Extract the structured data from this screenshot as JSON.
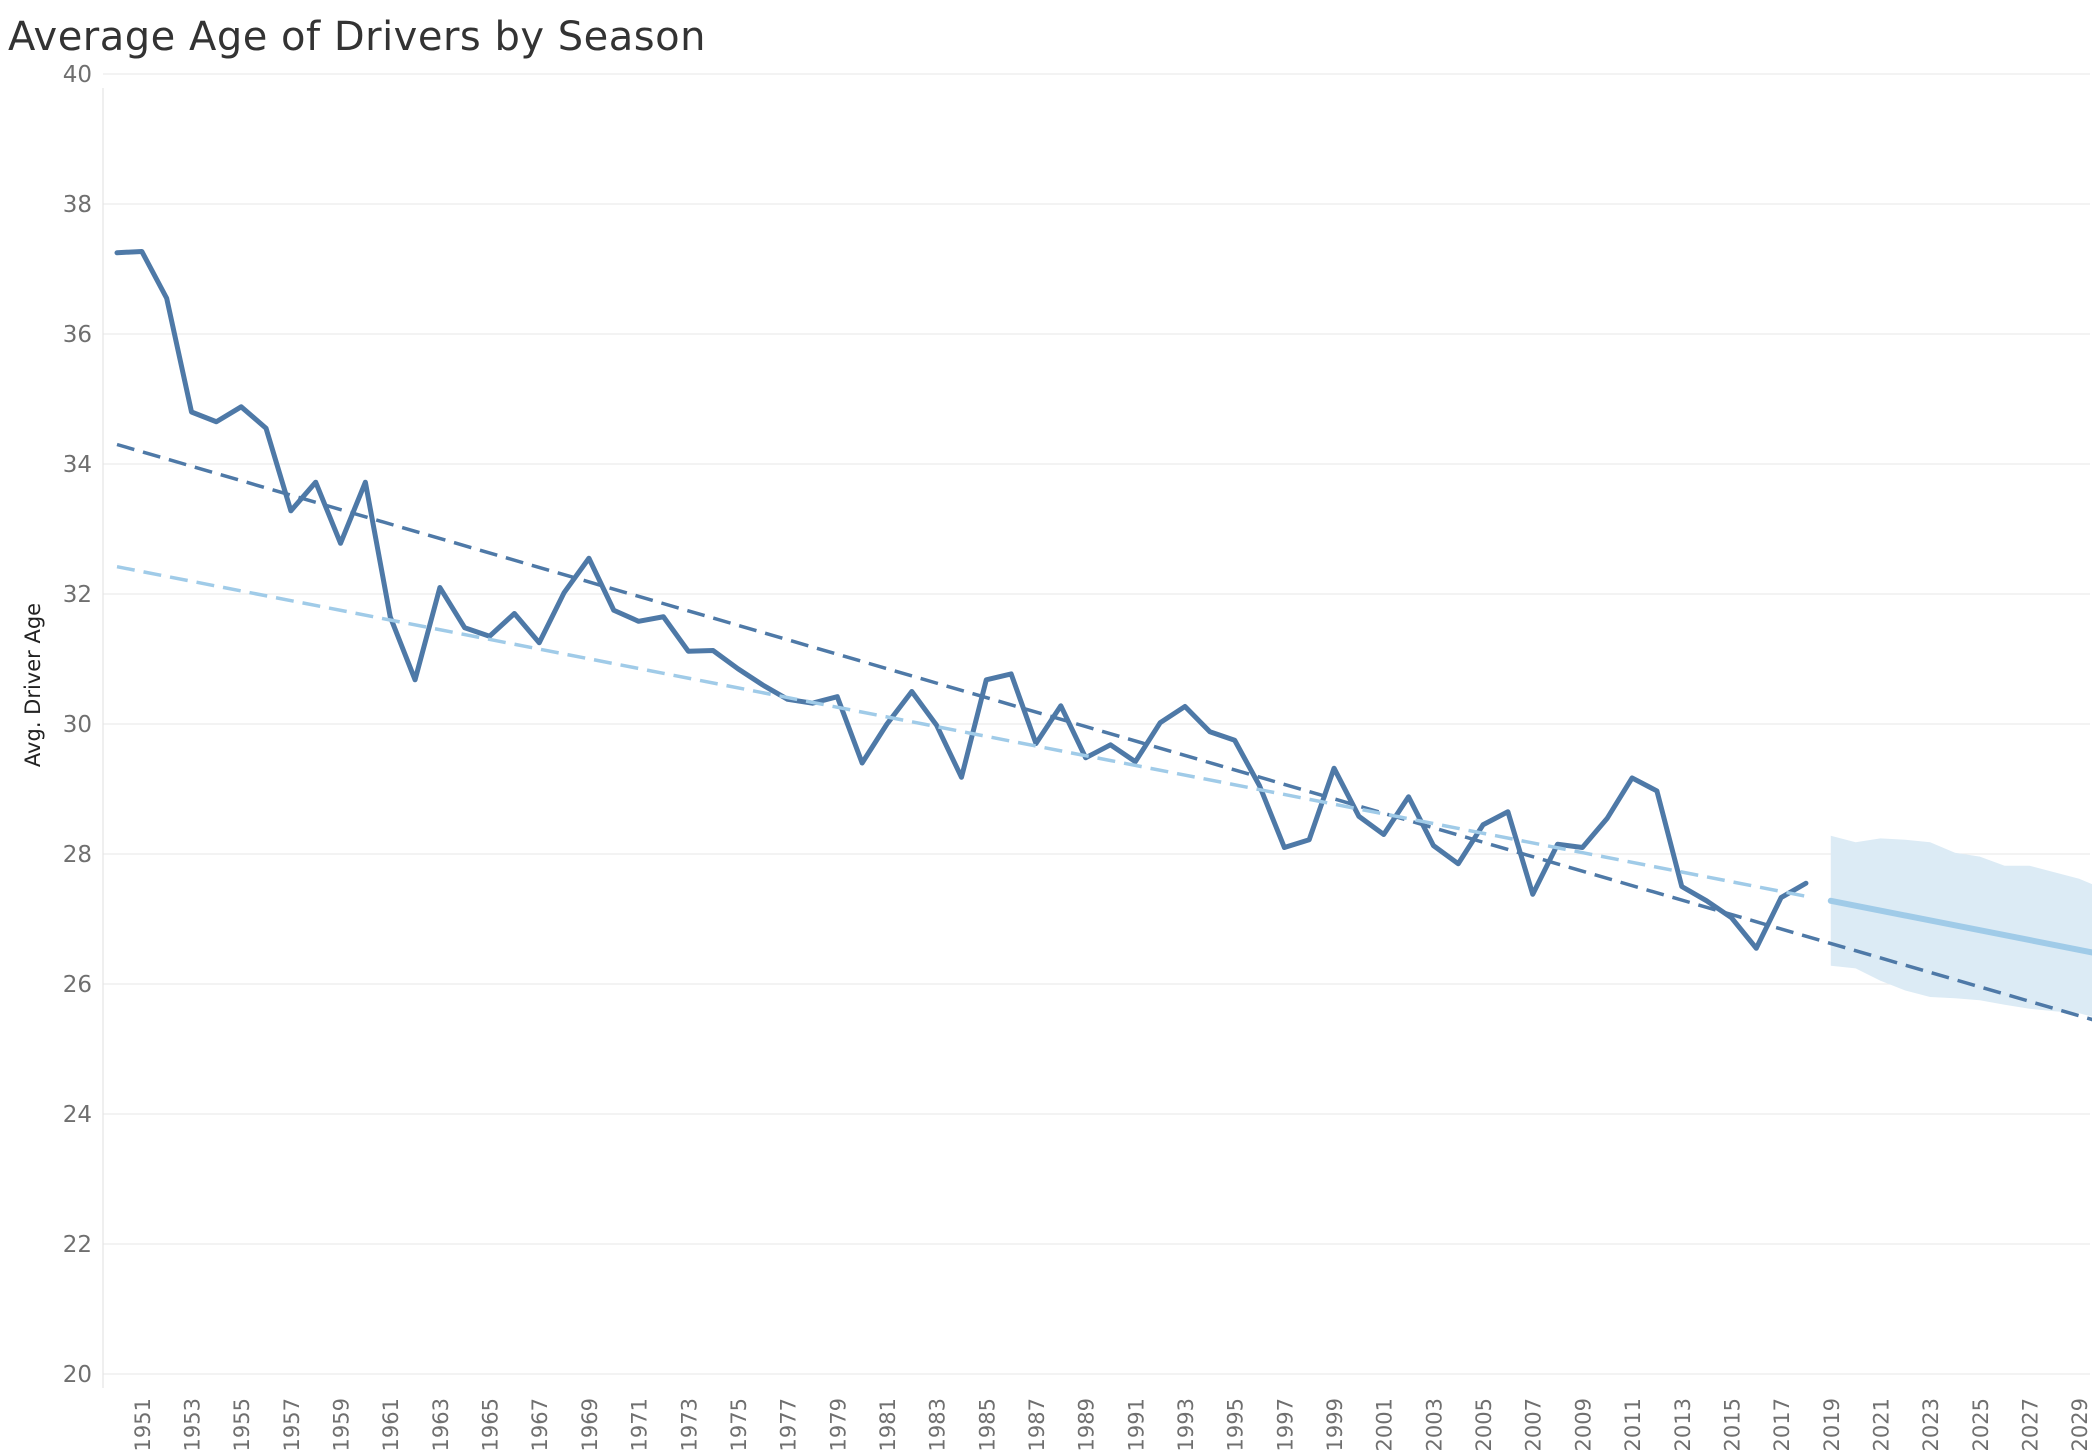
{
  "chart_data": {
    "type": "line",
    "title": "Average Age of Drivers by Season",
    "xlabel": "",
    "ylabel": "Avg. Driver Age",
    "ylim": [
      20,
      40
    ],
    "xlim": [
      1950,
      2030
    ],
    "grid": true,
    "y_ticks": [
      20,
      22,
      24,
      26,
      28,
      30,
      32,
      34,
      36,
      38,
      40
    ],
    "x_ticks": [
      "1951",
      "1953",
      "1955",
      "1957",
      "1959",
      "1961",
      "1963",
      "1965",
      "1967",
      "1969",
      "1971",
      "1973",
      "1975",
      "1977",
      "1979",
      "1981",
      "1983",
      "1985",
      "1987",
      "1989",
      "1991",
      "1993",
      "1995",
      "1997",
      "1999",
      "2001",
      "2003",
      "2005",
      "2007",
      "2009",
      "2011",
      "2013",
      "2015",
      "2017",
      "2019",
      "2021",
      "2023",
      "2025",
      "2027",
      "2029"
    ],
    "series": [
      {
        "kind": "actual",
        "color": "#4e79a7",
        "x": [
          1950,
          1951,
          1952,
          1953,
          1954,
          1955,
          1956,
          1957,
          1958,
          1959,
          1960,
          1961,
          1962,
          1963,
          1964,
          1965,
          1966,
          1967,
          1968,
          1969,
          1970,
          1971,
          1972,
          1973,
          1974,
          1975,
          1976,
          1977,
          1978,
          1979,
          1980,
          1981,
          1982,
          1983,
          1984,
          1985,
          1986,
          1987,
          1988,
          1989,
          1990,
          1991,
          1992,
          1993,
          1994,
          1995,
          1996,
          1997,
          1998,
          1999,
          2000,
          2001,
          2002,
          2003,
          2004,
          2005,
          2006,
          2007,
          2008,
          2009,
          2010,
          2011,
          2012,
          2013,
          2014,
          2015,
          2016,
          2017,
          2018
        ],
        "values": [
          37.25,
          37.27,
          36.55,
          34.8,
          34.65,
          34.88,
          34.55,
          33.28,
          33.72,
          32.78,
          33.72,
          31.65,
          30.68,
          32.1,
          31.48,
          31.35,
          31.7,
          31.25,
          32.02,
          32.55,
          31.75,
          31.58,
          31.65,
          31.12,
          31.13,
          30.85,
          30.6,
          30.38,
          30.32,
          30.42,
          29.4,
          30.0,
          30.5,
          29.98,
          29.18,
          30.68,
          30.77,
          29.7,
          30.28,
          29.48,
          29.68,
          29.42,
          30.02,
          30.27,
          29.88,
          29.75,
          29.05,
          28.1,
          28.22,
          29.32,
          28.58,
          28.3,
          28.88,
          28.13,
          27.85,
          28.45,
          28.65,
          27.38,
          28.15,
          28.1,
          28.55,
          29.17,
          28.97,
          27.5,
          27.28,
          27.02,
          26.55,
          27.33,
          27.55
        ]
      },
      {
        "kind": "trend",
        "color": "#4e79a7",
        "dashed": true,
        "x": [
          1950,
          2030
        ],
        "values": [
          34.3,
          25.4
        ]
      },
      {
        "kind": "trend",
        "color": "#a0cbe8",
        "dashed": true,
        "x": [
          1950,
          2018
        ],
        "values": [
          32.42,
          27.35
        ]
      },
      {
        "kind": "forecast",
        "color": "#a0cbe8",
        "x": [
          2019,
          2030
        ],
        "values": [
          27.28,
          26.45
        ],
        "band_x": [
          2019,
          2020,
          2021,
          2022,
          2023,
          2024,
          2025,
          2026,
          2027,
          2028,
          2029,
          2030
        ],
        "band_upper": [
          28.28,
          28.18,
          28.24,
          28.22,
          28.18,
          28.02,
          27.96,
          27.82,
          27.82,
          27.72,
          27.62,
          27.46
        ],
        "band_lower": [
          26.28,
          26.24,
          26.05,
          25.9,
          25.8,
          25.78,
          25.75,
          25.68,
          25.62,
          25.58,
          25.55,
          25.45
        ],
        "band_color": "#dcebf5"
      }
    ]
  }
}
